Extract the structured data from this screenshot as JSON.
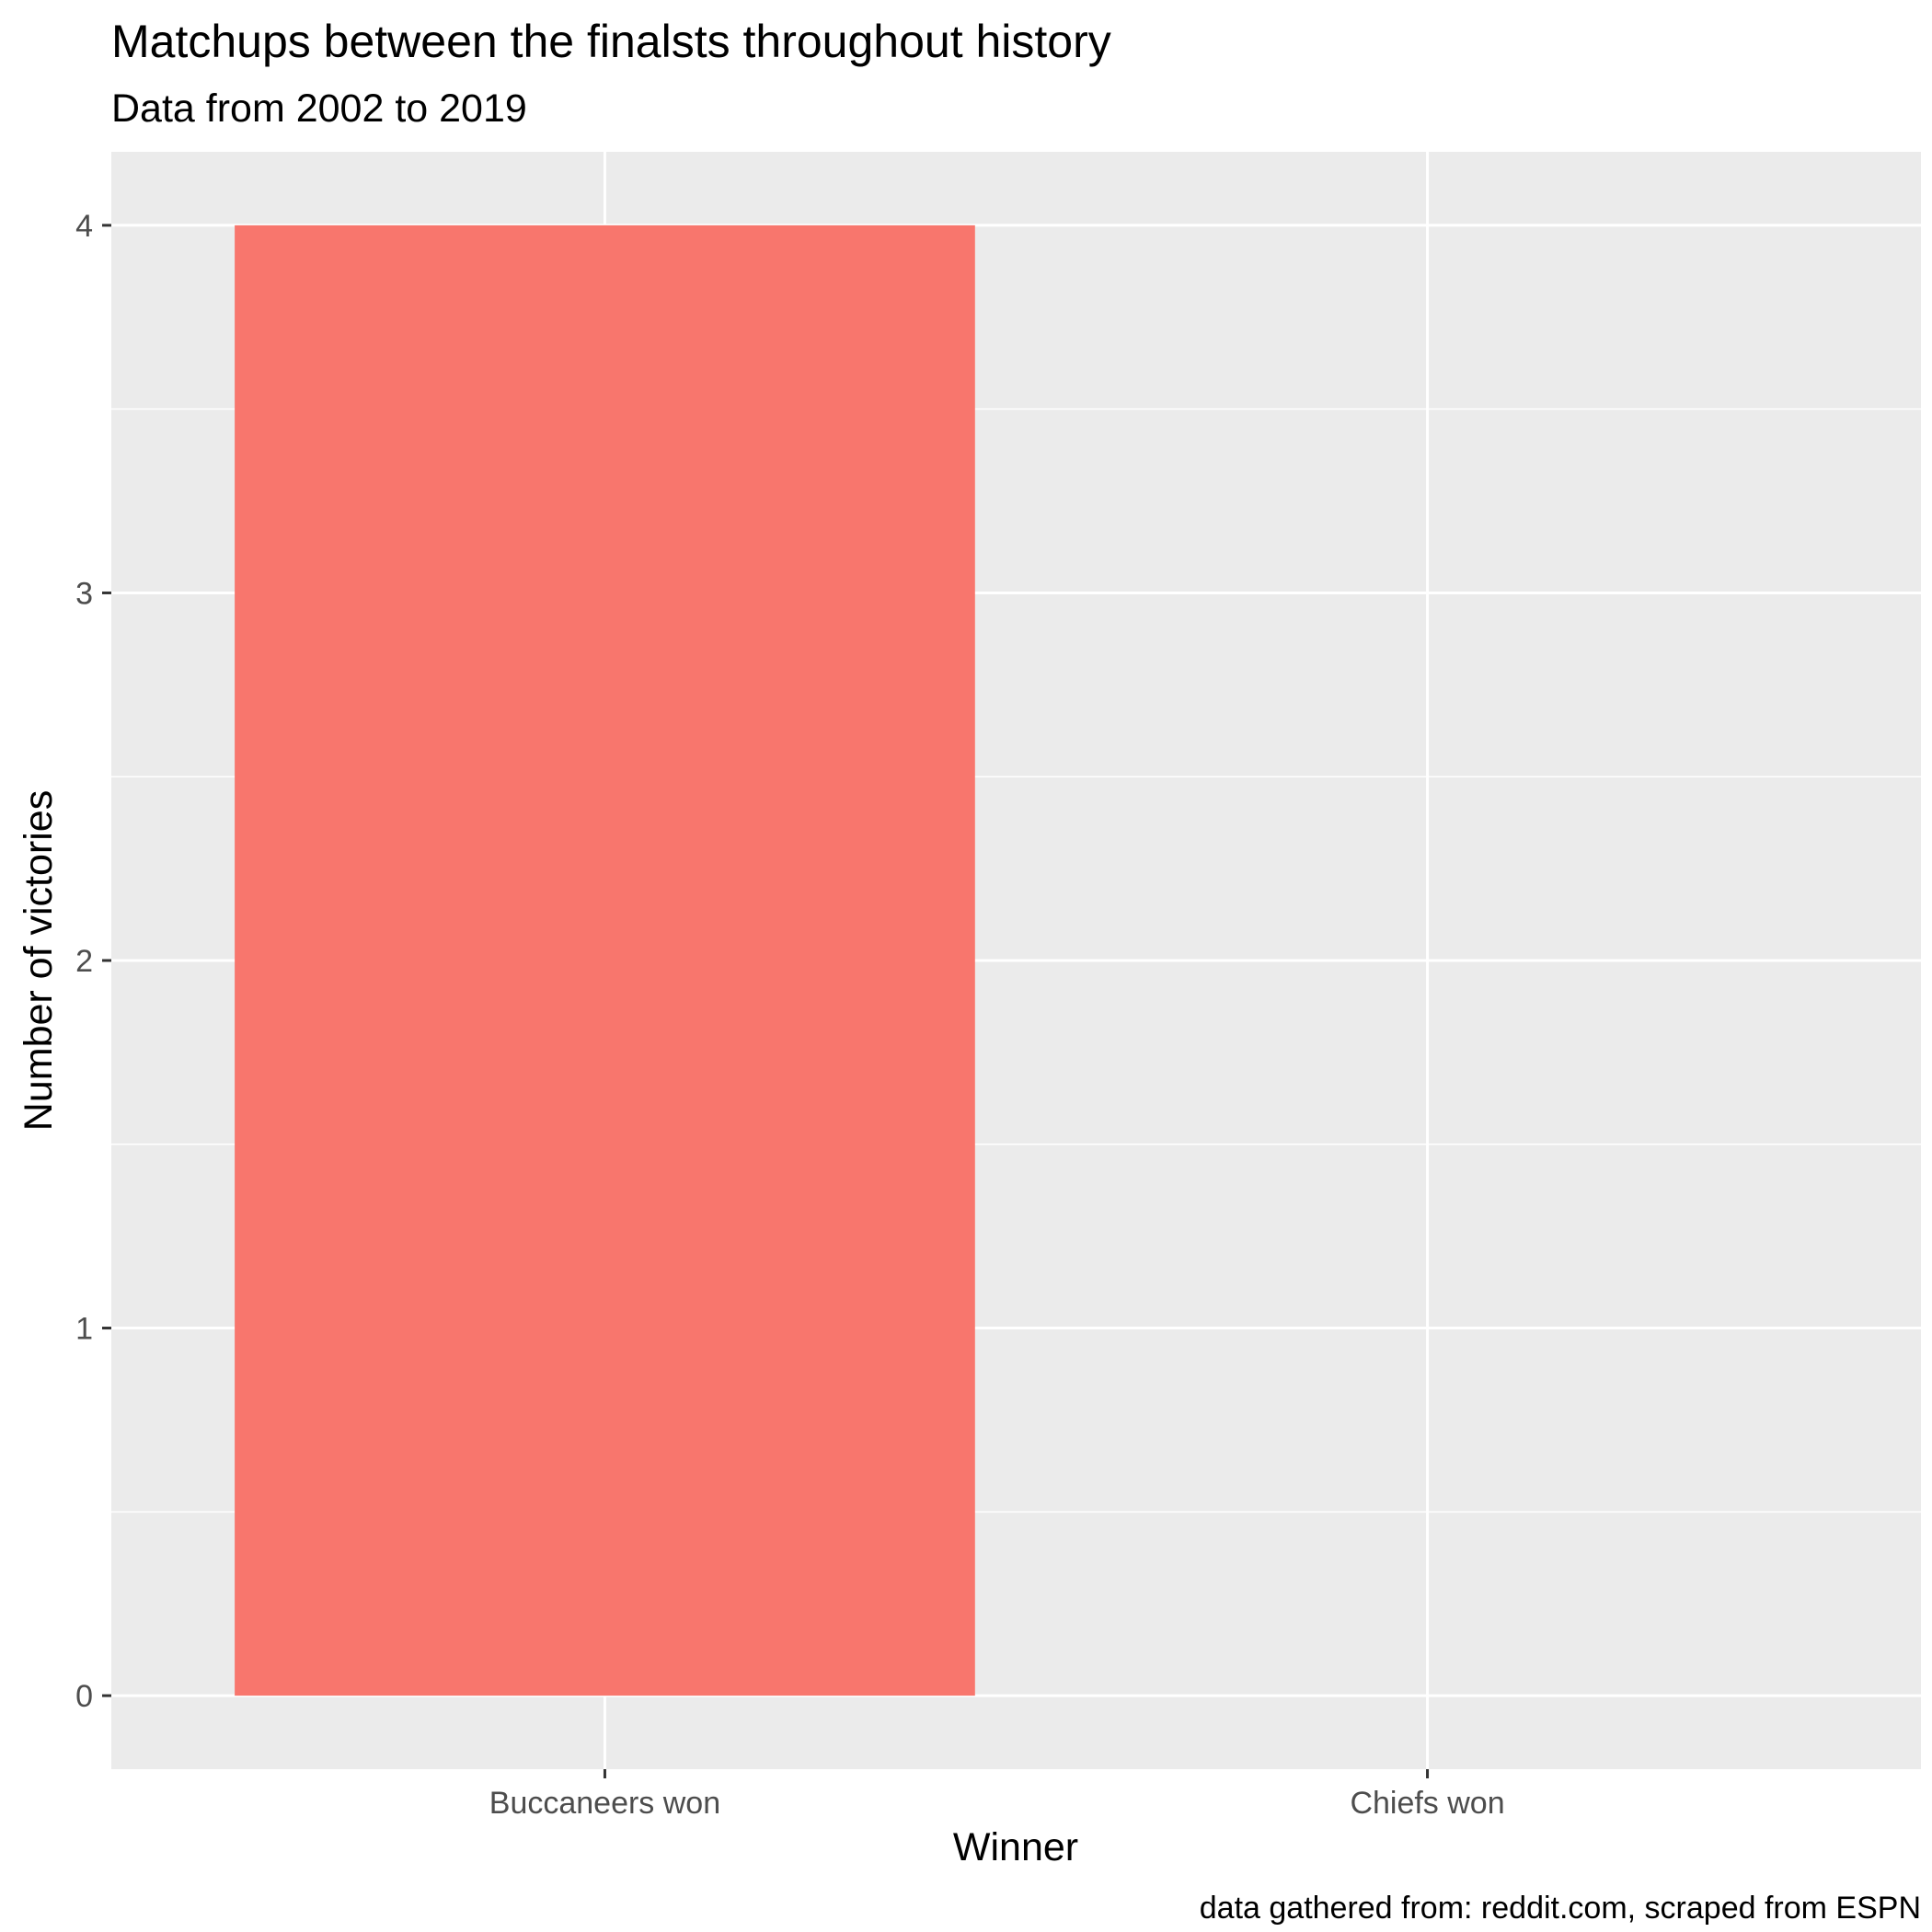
{
  "chart_data": {
    "type": "bar",
    "title": "Matchups between the finalsts throughout history",
    "subtitle": "Data from 2002 to 2019",
    "xlabel": "Winner",
    "ylabel": "Number of victories",
    "caption": "data gathered from: reddit.com, scraped from ESPN",
    "categories": [
      "Buccaneers won",
      "Chiefs won"
    ],
    "values": [
      4,
      0
    ],
    "bar_colors": [
      "#F8766D",
      "#00BFC4"
    ],
    "yticks": [
      0,
      1,
      2,
      3,
      4
    ],
    "ylim": [
      -0.2,
      4.2
    ],
    "grid": true,
    "panel_background": "#EBEBEB",
    "gridline_color": "#FFFFFF",
    "legend": "none"
  }
}
